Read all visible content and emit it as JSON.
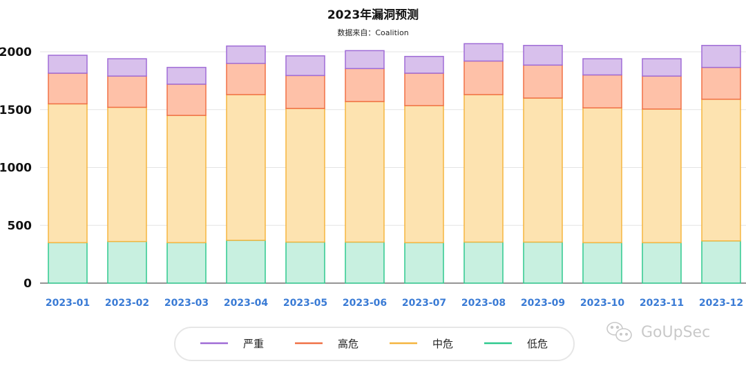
{
  "chart_data": {
    "type": "bar",
    "stacked": true,
    "title": "2023年漏洞预测",
    "subtitle": "数据来自：Coalition",
    "categories": [
      "2023-01",
      "2023-02",
      "2023-03",
      "2023-04",
      "2023-05",
      "2023-06",
      "2023-07",
      "2023-08",
      "2023-09",
      "2023-10",
      "2023-11",
      "2023-12"
    ],
    "ylim": [
      0,
      2000
    ],
    "yticks": [
      0,
      500,
      1000,
      1500,
      2000
    ],
    "grid": true,
    "legend_position": "bottom",
    "series": [
      {
        "name": "低危",
        "color": "#2ec98e",
        "fill": "#c8f0e0",
        "values": [
          350,
          360,
          350,
          370,
          355,
          355,
          350,
          355,
          355,
          350,
          350,
          365
        ]
      },
      {
        "name": "中危",
        "color": "#f5b53f",
        "fill": "#fde3b0",
        "values": [
          1200,
          1160,
          1100,
          1260,
          1155,
          1215,
          1185,
          1275,
          1245,
          1165,
          1155,
          1225
        ]
      },
      {
        "name": "高危",
        "color": "#f07045",
        "fill": "#fec1a8",
        "values": [
          265,
          270,
          270,
          270,
          285,
          285,
          280,
          290,
          285,
          285,
          285,
          275
        ]
      },
      {
        "name": "严重",
        "color": "#9f6bd6",
        "fill": "#d8c0ec",
        "values": [
          155,
          150,
          145,
          150,
          170,
          155,
          145,
          150,
          170,
          140,
          150,
          190
        ]
      }
    ],
    "legend_order": [
      "严重",
      "高危",
      "中危",
      "低危"
    ]
  },
  "watermark": "GoUpSec"
}
